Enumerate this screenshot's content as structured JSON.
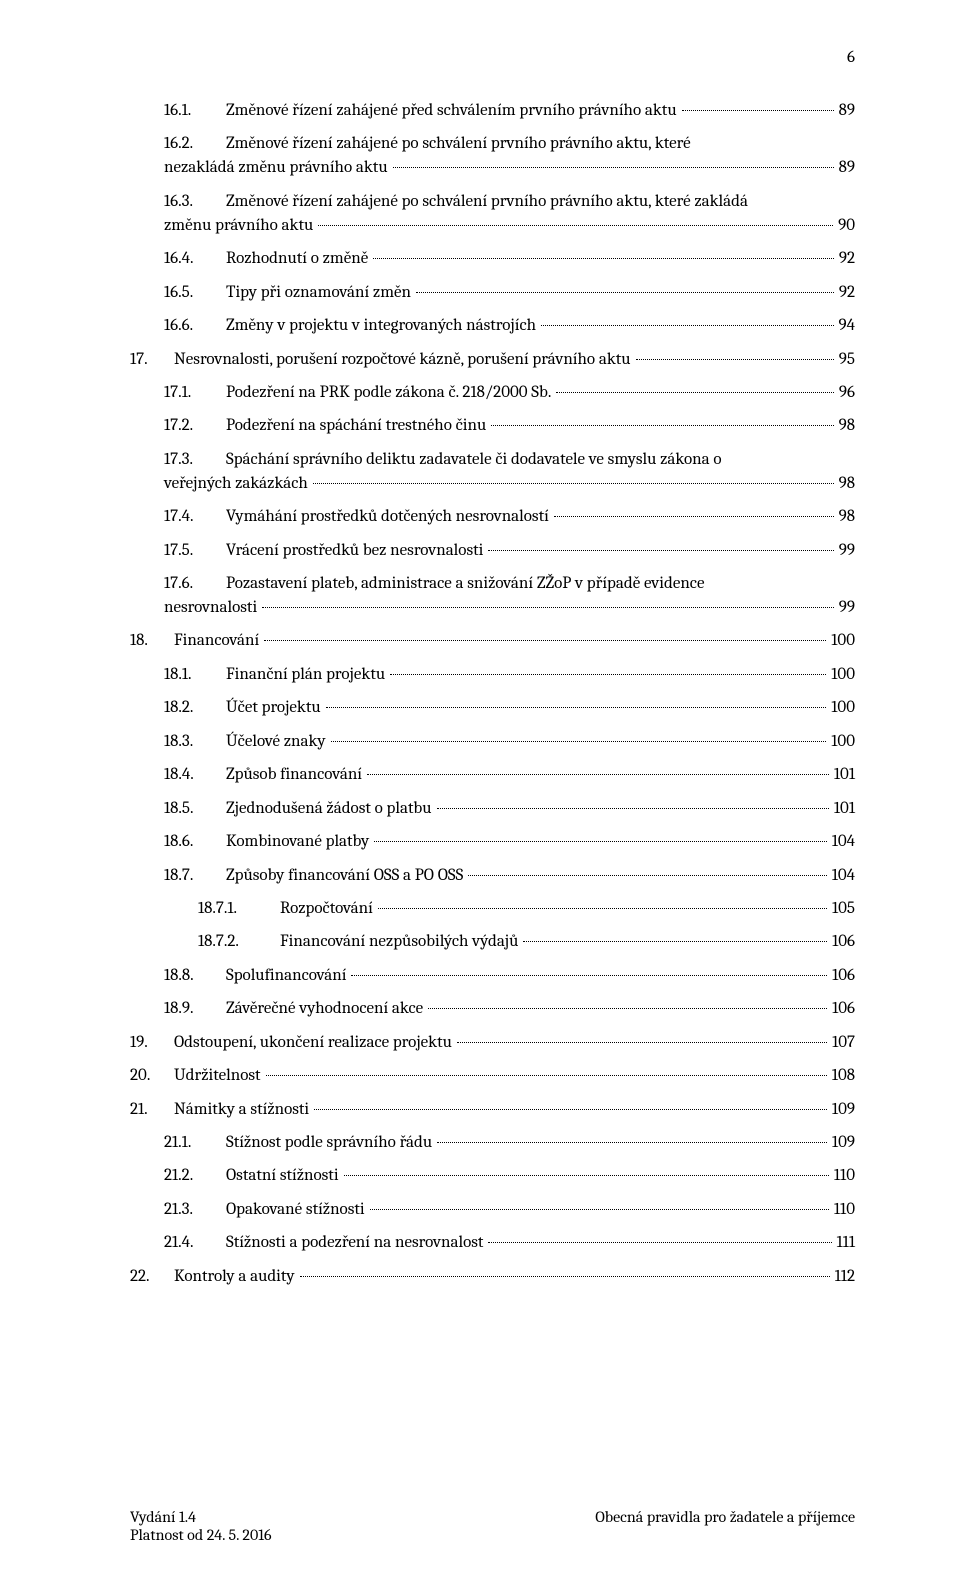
{
  "page_number": "6",
  "toc": [
    {
      "level": 2,
      "num": "16.1.",
      "title": "Změnové řízení zahájené před schválením prvního právního aktu",
      "page": "89",
      "wrap": false
    },
    {
      "level": 2,
      "num": "16.2.",
      "title": "Změnové řízení zahájené po schválení prvního právního aktu, které nezakládá změnu právního aktu",
      "page": "89",
      "wrap": true,
      "wrap_text_1": "Změnové řízení zahájené po schválení prvního právního aktu, které",
      "wrap_text_2": "nezakládá změnu právního aktu"
    },
    {
      "level": 2,
      "num": "16.3.",
      "title": "Změnové řízení zahájené po schválení prvního právního aktu, které  zakládá změnu právního aktu",
      "page": "90",
      "wrap": true,
      "wrap_text_1": "Změnové řízení zahájené po schválení prvního právního aktu, které  zakládá",
      "wrap_text_2": "změnu právního aktu"
    },
    {
      "level": 2,
      "num": "16.4.",
      "title": "Rozhodnutí o změně",
      "page": "92",
      "wrap": false
    },
    {
      "level": 2,
      "num": "16.5.",
      "title": "Tipy při oznamování změn",
      "page": "92",
      "wrap": false
    },
    {
      "level": 2,
      "num": "16.6.",
      "title": "Změny v projektu v integrovaných nástrojích",
      "page": "94",
      "wrap": false
    },
    {
      "level": 1,
      "num": "17.",
      "title": "Nesrovnalosti, porušení rozpočtové kázně, porušení právního aktu",
      "page": "95",
      "wrap": false
    },
    {
      "level": 2,
      "num": "17.1.",
      "title": "Podezření na PRK podle zákona č. 218/2000 Sb. ",
      "page": "96",
      "wrap": false
    },
    {
      "level": 2,
      "num": "17.2.",
      "title": "Podezření na spáchání trestného činu",
      "page": "98",
      "wrap": false
    },
    {
      "level": 2,
      "num": "17.3.",
      "title": "Spáchání správního deliktu zadavatele či dodavatele ve smyslu zákona o veřejných zakázkách",
      "page": "98",
      "wrap": true,
      "wrap_text_1": "Spáchání správního deliktu zadavatele či dodavatele ve smyslu zákona o",
      "wrap_text_2": "veřejných zakázkách"
    },
    {
      "level": 2,
      "num": "17.4.",
      "title": "Vymáhání prostředků dotčených nesrovnalostí",
      "page": "98",
      "wrap": false
    },
    {
      "level": 2,
      "num": "17.5.",
      "title": "Vrácení prostředků bez nesrovnalosti",
      "page": "99",
      "wrap": false
    },
    {
      "level": 2,
      "num": "17.6.",
      "title": "Pozastavení plateb, administrace a snižování ZŽoP v případě evidence nesrovnalosti",
      "page": "99",
      "wrap": true,
      "wrap_text_1": "Pozastavení plateb, administrace a snižování ZŽoP v případě evidence",
      "wrap_text_2": "nesrovnalosti"
    },
    {
      "level": 1,
      "num": "18.",
      "title": "Financování",
      "page": "100",
      "wrap": false
    },
    {
      "level": 2,
      "num": "18.1.",
      "title": "Finanční plán projektu",
      "page": "100",
      "wrap": false
    },
    {
      "level": 2,
      "num": "18.2.",
      "title": "Účet projektu",
      "page": "100",
      "wrap": false
    },
    {
      "level": 2,
      "num": "18.3.",
      "title": "Účelové znaky",
      "page": "100",
      "wrap": false
    },
    {
      "level": 2,
      "num": "18.4.",
      "title": "Způsob financování",
      "page": "101",
      "wrap": false
    },
    {
      "level": 2,
      "num": "18.5.",
      "title": "Zjednodušená žádost o platbu",
      "page": "101",
      "wrap": false
    },
    {
      "level": 2,
      "num": "18.6.",
      "title": "Kombinované platby",
      "page": "104",
      "wrap": false
    },
    {
      "level": 2,
      "num": "18.7.",
      "title": "Způsoby financování OSS a PO OSS",
      "page": "104",
      "wrap": false
    },
    {
      "level": 3,
      "num": "18.7.1.",
      "title": "Rozpočtování",
      "page": "105",
      "wrap": false
    },
    {
      "level": 3,
      "num": "18.7.2.",
      "title": "Financování nezpůsobilých výdajů",
      "page": "106",
      "wrap": false
    },
    {
      "level": 2,
      "num": "18.8.",
      "title": "Spolufinancování",
      "page": "106",
      "wrap": false
    },
    {
      "level": 2,
      "num": "18.9.",
      "title": "Závěrečné vyhodnocení akce",
      "page": "106",
      "wrap": false
    },
    {
      "level": 1,
      "num": "19.",
      "title": "Odstoupení, ukončení realizace projektu",
      "page": "107",
      "wrap": false
    },
    {
      "level": 1,
      "num": "20.",
      "title": "Udržitelnost",
      "page": "108",
      "wrap": false
    },
    {
      "level": 1,
      "num": "21.",
      "title": "Námitky a stížnosti",
      "page": "109",
      "wrap": false
    },
    {
      "level": 2,
      "num": "21.1.",
      "title": "Stížnost podle správního řádu",
      "page": "109",
      "wrap": false
    },
    {
      "level": 2,
      "num": "21.2.",
      "title": "Ostatní stížnosti",
      "page": "110",
      "wrap": false
    },
    {
      "level": 2,
      "num": "21.3.",
      "title": "Opakované stížnosti",
      "page": "110",
      "wrap": false
    },
    {
      "level": 2,
      "num": "21.4.",
      "title": "Stížnosti a podezření na nesrovnalost",
      "page": "111",
      "wrap": false
    },
    {
      "level": 1,
      "num": "22.",
      "title": "Kontroly a audity",
      "page": "112",
      "wrap": false
    }
  ],
  "footer": {
    "left_line_1": "Vydání 1.4",
    "left_line_2": "Platnost od 24. 5. 2016",
    "right": "Obecná pravidla pro žadatele a příjemce"
  }
}
